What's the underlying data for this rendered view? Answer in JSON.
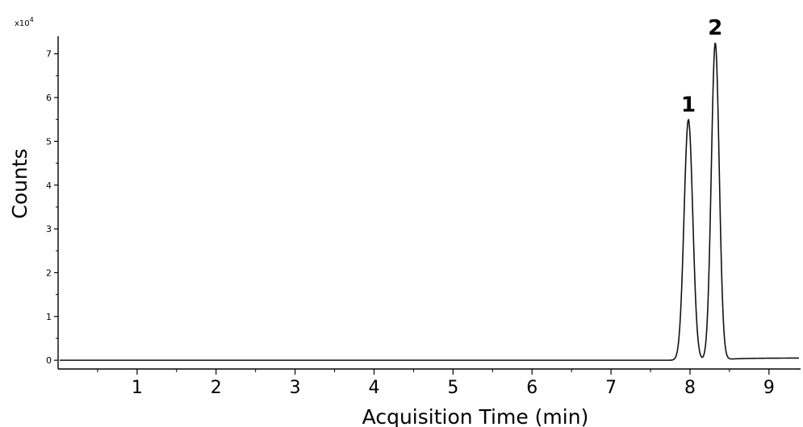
{
  "chart_data": {
    "type": "line",
    "xlabel": "Acquisition Time (min)",
    "ylabel": "Counts",
    "y_multiplier": "x10",
    "y_multiplier_exp": "4",
    "xlim": [
      0,
      9.4
    ],
    "ylim": [
      -0.2,
      7.4
    ],
    "x_ticks": [
      1,
      2,
      3,
      4,
      5,
      6,
      7,
      8,
      9
    ],
    "x_tick_labels": [
      "1",
      "2",
      "3",
      "4",
      "5",
      "6",
      "7",
      "8",
      "9"
    ],
    "y_ticks": [
      0,
      1,
      2,
      3,
      4,
      5,
      6,
      7
    ],
    "y_tick_labels": [
      "0",
      "1",
      "2",
      "3",
      "4",
      "5",
      "6",
      "7"
    ],
    "grid": false,
    "series": [
      {
        "color": "#111111",
        "baseline": 0.0,
        "tail_level": 0.05,
        "x_end": 9.38,
        "peaks": [
          {
            "label": "1",
            "x": 7.98,
            "y": 5.5
          },
          {
            "label": "2",
            "x": 8.32,
            "y": 7.25
          }
        ]
      }
    ]
  }
}
